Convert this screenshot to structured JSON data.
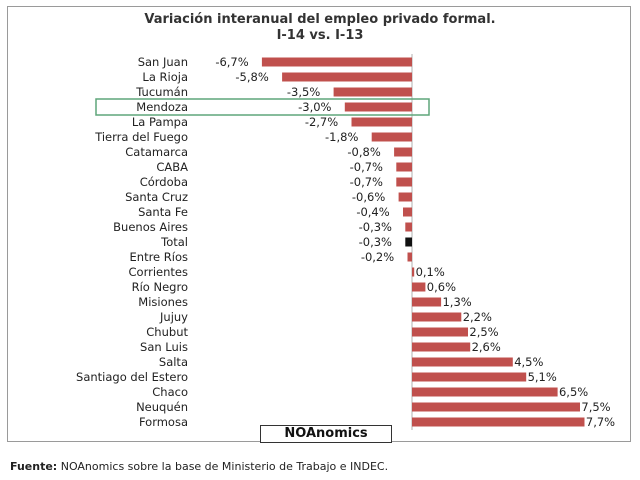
{
  "chart_data": {
    "type": "bar",
    "orientation": "horizontal",
    "title": "Variación interanual del empleo privado formal.",
    "subtitle": "I-14 vs. I-13",
    "categories": [
      "San Juan",
      "La Rioja",
      "Tucumán",
      "Mendoza",
      "La Pampa",
      "Tierra del Fuego",
      "Catamarca",
      "CABA",
      "Córdoba",
      "Santa Cruz",
      "Santa Fe",
      "Buenos Aires",
      "Total",
      "Entre Ríos",
      "Corrientes",
      "Río Negro",
      "Misiones",
      "Jujuy",
      "Chubut",
      "San Luis",
      "Salta",
      "Santiago del Estero",
      "Chaco",
      "Neuquén",
      "Formosa"
    ],
    "values": [
      -6.7,
      -5.8,
      -3.5,
      -3.0,
      -2.7,
      -1.8,
      -0.8,
      -0.7,
      -0.7,
      -0.6,
      -0.4,
      -0.3,
      -0.3,
      -0.2,
      0.1,
      0.6,
      1.3,
      2.2,
      2.5,
      2.6,
      4.5,
      5.1,
      6.5,
      7.5,
      7.7
    ],
    "labels": [
      "-6,7%",
      "-5,8%",
      "-3,5%",
      "-3,0%",
      "-2,7%",
      "-1,8%",
      "-0,8%",
      "-0,7%",
      "-0,7%",
      "-0,6%",
      "-0,4%",
      "-0,3%",
      "-0,3%",
      "-0,2%",
      "0,1%",
      "0,6%",
      "1,3%",
      "2,2%",
      "2,5%",
      "2,6%",
      "4,5%",
      "5,1%",
      "6,5%",
      "7,5%",
      "7,7%"
    ],
    "highlighted_category": "Mendoza",
    "total_category": "Total",
    "xlim": [
      -6.7,
      7.7
    ],
    "grid": false,
    "legend": false
  },
  "colors": {
    "bar": "#c0504d",
    "total_bar": "#111111",
    "highlight_box": "#5fa57a",
    "axis": "#b0b0b0"
  },
  "brand": "NOAnomics",
  "source": {
    "label": "Fuente:",
    "text": "NOAnomics sobre la base de Ministerio de Trabajo e INDEC."
  }
}
